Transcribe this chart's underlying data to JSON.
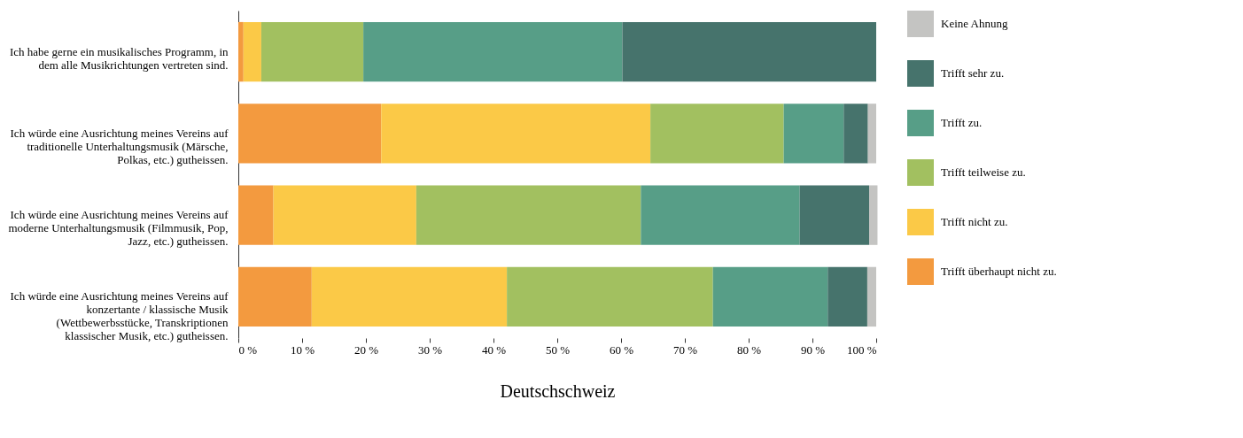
{
  "chart_data": {
    "type": "bar",
    "orientation": "horizontal",
    "stacked": true,
    "xlabel": "Deutschschweiz",
    "categories": [
      "Ich habe gerne ein musikalisches Programm, in dem alle Musikrichtungen vertreten sind.",
      "Ich würde eine Ausrichtung meines Vereins auf traditionelle Unterhaltungsmusik (Märsche, Polkas, etc.) gutheissen.",
      "Ich würde eine Ausrichtung meines Vereins auf moderne Unterhaltungsmusik (Filmmusik, Pop, Jazz, etc.) gutheissen.",
      "Ich würde eine Ausrichtung meines Vereins auf konzertante / klassische Musik (Wettbewerbsstücke, Transkriptionen klassischer Musik, etc.) gutheissen."
    ],
    "series": [
      {
        "name": "Trifft überhaupt nicht zu.",
        "color": "#f39a3f",
        "values": [
          0.8,
          22.4,
          5.5,
          11.5
        ]
      },
      {
        "name": "Trifft nicht zu.",
        "color": "#fbc947",
        "values": [
          2.8,
          42.2,
          22.4,
          30.6
        ]
      },
      {
        "name": "Trifft teilweise zu.",
        "color": "#a2c060",
        "values": [
          16,
          20.9,
          35.2,
          32.3
        ]
      },
      {
        "name": "Trifft zu.",
        "color": "#579e87",
        "values": [
          40.6,
          9.4,
          24.9,
          18
        ]
      },
      {
        "name": "Trifft sehr zu.",
        "color": "#46736c",
        "values": [
          39.8,
          3.8,
          10.9,
          6.2
        ]
      },
      {
        "name": "Keine Ahnung",
        "color": "#c4c4c2",
        "values": [
          null,
          1.3,
          1.3,
          1.4
        ]
      }
    ],
    "xlim": [
      0,
      100
    ],
    "xticks": [
      {
        "value": 0,
        "label": "0 %"
      },
      {
        "value": 10,
        "label": "10 %"
      },
      {
        "value": 20,
        "label": "20 %"
      },
      {
        "value": 30,
        "label": "30 %"
      },
      {
        "value": 40,
        "label": "40 %"
      },
      {
        "value": 50,
        "label": "50 %"
      },
      {
        "value": 60,
        "label": "60 %"
      },
      {
        "value": 70,
        "label": "70 %"
      },
      {
        "value": 80,
        "label": "80 %"
      },
      {
        "value": 90,
        "label": "90 %"
      },
      {
        "value": 100,
        "label": "100 %"
      }
    ],
    "grid": false,
    "legend": "right"
  }
}
